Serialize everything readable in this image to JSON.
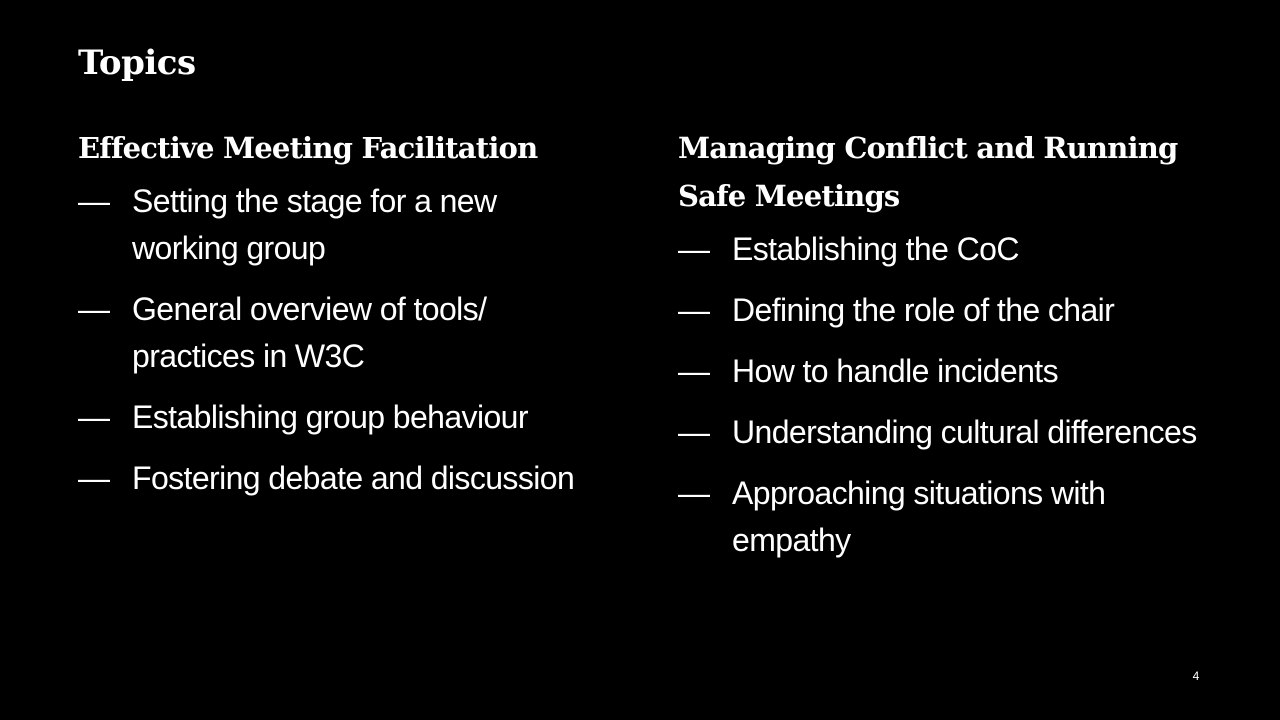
{
  "slide": {
    "title": "Topics",
    "page_number": "4",
    "bullet_marker": "—"
  },
  "left_column": {
    "heading": "Effective Meeting Facilitation",
    "items": [
      "Setting the stage for a new working group",
      "General overview of tools/ practices in W3C",
      "Establishing group behaviour",
      "Fostering debate and discussion"
    ]
  },
  "right_column": {
    "heading": "Managing Conflict and Running Safe Meetings",
    "items": [
      "Establishing the CoC",
      "Defining the role of the chair",
      "How to handle incidents",
      "Understanding cultural differences",
      "Approaching situations with empathy"
    ]
  },
  "colors": {
    "background": "#000000",
    "text": "#ffffff"
  }
}
